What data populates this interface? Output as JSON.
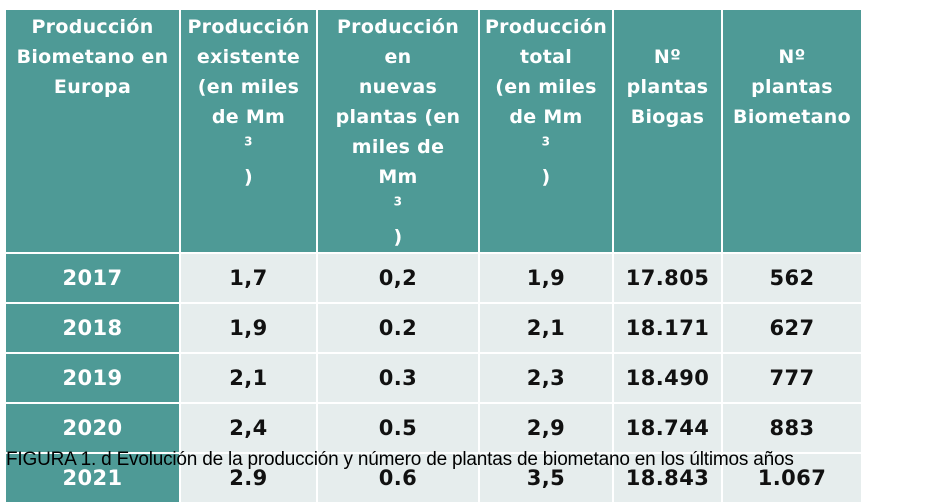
{
  "headers": [
    {
      "lines": [
        "Producción",
        "Biometano en",
        "Europa"
      ],
      "sup": ""
    },
    {
      "lines": [
        "Producción",
        "existente",
        "(en miles",
        "de Mm"
      ],
      "sup": "3",
      "after": ")"
    },
    {
      "lines": [
        "Producción en",
        "nuevas",
        "plantas (en",
        "miles de",
        "Mm"
      ],
      "sup": "3",
      "after": ")"
    },
    {
      "lines": [
        "Producción",
        "total",
        "(en miles",
        "de Mm"
      ],
      "sup": "3",
      "after": ")"
    },
    {
      "lines": [
        "Nº",
        "plantas",
        "Biogas"
      ],
      "sup": ""
    },
    {
      "lines": [
        "Nº",
        "plantas",
        "Biometano"
      ],
      "sup": ""
    }
  ],
  "rows": [
    [
      "2017",
      "1,7",
      "0,2",
      "1,9",
      "17.805",
      "562"
    ],
    [
      "2018",
      "1,9",
      "0.2",
      "2,1",
      "18.171",
      "627"
    ],
    [
      "2019",
      "2,1",
      "0.3",
      "2,3",
      "18.490",
      "777"
    ],
    [
      "2020",
      "2,4",
      "0.5",
      "2,9",
      "18.744",
      "883"
    ],
    [
      "2021",
      "2.9",
      "0.6",
      "3,5",
      "18.843",
      "1.067"
    ]
  ],
  "caption": "FIGURA 1.  d Evolución de la producción y número de plantas de biometano en los últimos años",
  "colors": {
    "header_bg": "#4e9a96",
    "cell_bg": "#e6eded",
    "header_text": "#ffffff"
  }
}
